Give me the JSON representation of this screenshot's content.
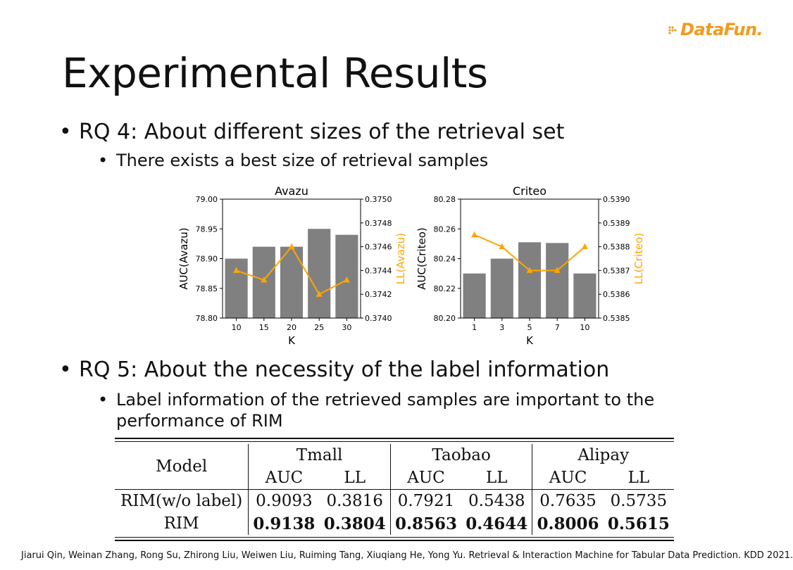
{
  "logo": {
    "text": "DataFun."
  },
  "title": "Experimental Results",
  "bullets": {
    "rq4": "RQ 4: About different sizes of the retrieval set",
    "rq4_sub": "There exists a best size of retrieval samples",
    "rq5": "RQ 5: About the necessity of the label information",
    "rq5_sub_line1": "Label information of the retrieved samples are important to the",
    "rq5_sub_line2": "performance of RIM"
  },
  "colors": {
    "bar": "#808080",
    "line": "#ffa500",
    "logo": "#f39a1c"
  },
  "chart_data": [
    {
      "type": "bar",
      "title": "Avazu",
      "xlabel": "K",
      "ylabel": "AUC(Avazu)",
      "y2label": "LL(Avazu)",
      "categories": [
        "10",
        "15",
        "20",
        "25",
        "30"
      ],
      "values": [
        78.9,
        78.92,
        78.92,
        78.95,
        78.94
      ],
      "ylim": [
        78.8,
        79.0
      ],
      "yticks": [
        "78.80",
        "78.85",
        "78.90",
        "78.95",
        "79.00"
      ],
      "line_values": [
        0.3744,
        0.37432,
        0.3746,
        0.3742,
        0.37432
      ],
      "y2lim": [
        0.374,
        0.375
      ],
      "y2ticks": [
        "0.3740",
        "0.3742",
        "0.3744",
        "0.3746",
        "0.3748",
        "0.3750"
      ]
    },
    {
      "type": "bar",
      "title": "Criteo",
      "xlabel": "K",
      "ylabel": "AUC(Criteo)",
      "y2label": "LL(Criteo)",
      "categories": [
        "1",
        "3",
        "5",
        "7",
        "10"
      ],
      "values": [
        80.23,
        80.24,
        80.251,
        80.2505,
        80.23
      ],
      "ylim": [
        80.2,
        80.28
      ],
      "yticks": [
        "80.20",
        "80.22",
        "80.24",
        "80.26",
        "80.28"
      ],
      "line_values": [
        0.53885,
        0.5388,
        0.5387,
        0.5387,
        0.5388
      ],
      "y2lim": [
        0.5385,
        0.539
      ],
      "y2ticks": [
        "0.5385",
        "0.5386",
        "0.5387",
        "0.5388",
        "0.5389",
        "0.5390"
      ]
    }
  ],
  "table": {
    "model_header": "Model",
    "groups": [
      "Tmall",
      "Taobao",
      "Alipay"
    ],
    "subheaders": [
      "AUC",
      "LL",
      "AUC",
      "LL",
      "AUC",
      "LL"
    ],
    "rows": [
      {
        "model": "RIM(w/o label)",
        "values": [
          "0.9093",
          "0.3816",
          "0.7921",
          "0.5438",
          "0.7635",
          "0.5735"
        ]
      },
      {
        "model": "RIM",
        "values": [
          "0.9138",
          "0.3804",
          "0.8563",
          "0.4644",
          "0.8006",
          "0.5615"
        ]
      }
    ]
  },
  "citation": "Jiarui Qin, Weinan Zhang, Rong Su, Zhirong Liu, Weiwen Liu, Ruiming Tang, Xiuqiang He, Yong Yu. Retrieval & Interaction Machine for Tabular Data Prediction. KDD 2021."
}
